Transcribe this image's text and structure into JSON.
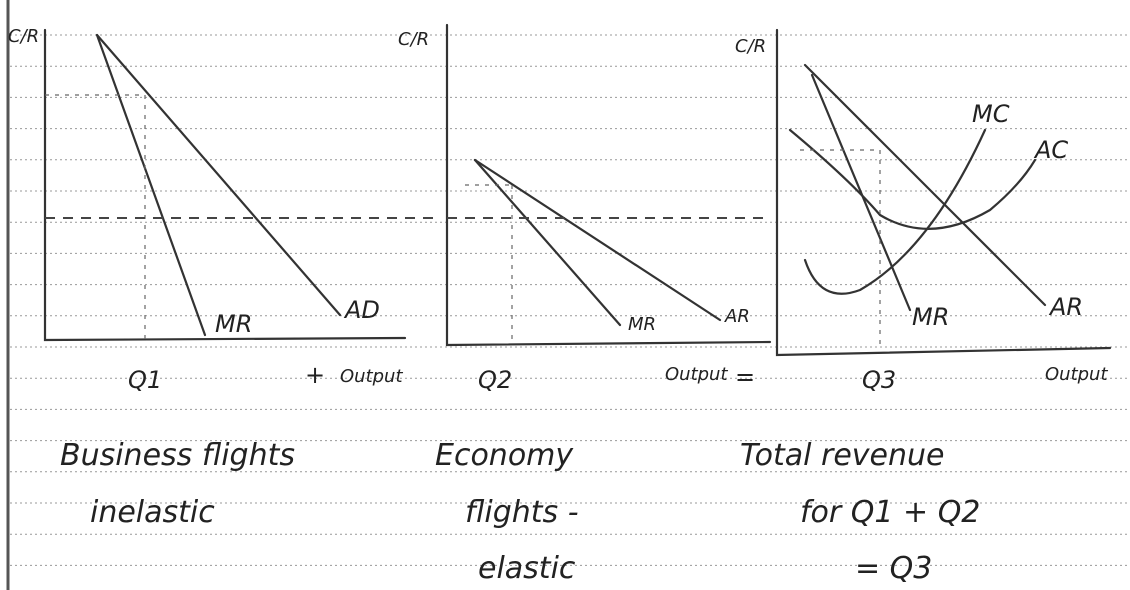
{
  "panels": [
    {
      "y_label": "C/R",
      "quantity": "Q1",
      "curve_labels": [
        "MR",
        "AD"
      ],
      "operator": "+",
      "x_label": "Output",
      "caption": [
        "Business flights",
        "inelastic"
      ]
    },
    {
      "y_label": "C/R",
      "quantity": "Q2",
      "curve_labels": [
        "MR",
        "AR"
      ],
      "x_label": "Output",
      "operator": "=",
      "caption": [
        "Economy",
        "flights -",
        "elastic"
      ]
    },
    {
      "y_label": "C/R",
      "quantity": "Q3",
      "curve_labels": [
        "MC",
        "AC",
        "MR",
        "AR"
      ],
      "x_label": "Output",
      "caption": [
        "Total revenue",
        "for Q1 + Q2",
        "= Q3"
      ]
    }
  ]
}
